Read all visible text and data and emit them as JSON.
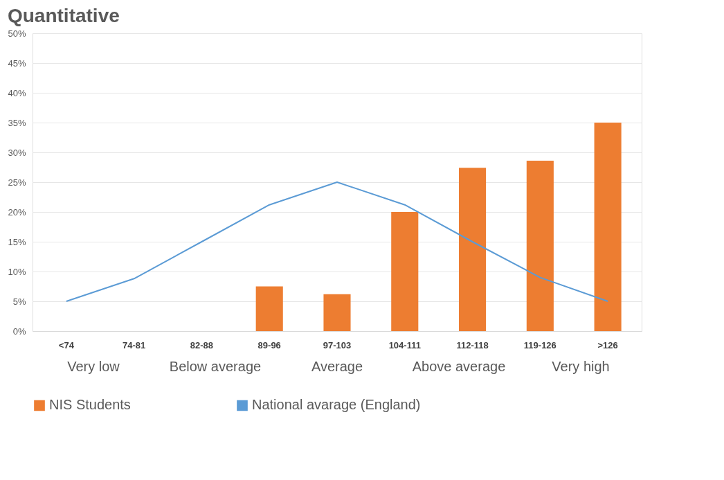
{
  "chart_data": {
    "type": "bar",
    "title": "Quantitative",
    "categories": [
      "<74",
      "74-81",
      "82-88",
      "89-96",
      "97-103",
      "104-111",
      "112-118",
      "119-126",
      ">126"
    ],
    "series": [
      {
        "name": "NIS Students",
        "color": "#ed7d31",
        "values": [
          null,
          null,
          null,
          7.5,
          6.2,
          20,
          27.4,
          28.6,
          35
        ]
      },
      {
        "name": "National avarage (England)",
        "type": "line",
        "color": "#5b9bd5",
        "values": [
          5,
          8.8,
          15,
          21.2,
          25,
          21.2,
          15,
          9,
          5
        ]
      }
    ],
    "ylim": [
      0,
      50
    ],
    "yticks": [
      {
        "value": 0,
        "label": "0%"
      },
      {
        "value": 5,
        "label": "5%"
      },
      {
        "value": 10,
        "label": "10%"
      },
      {
        "value": 15,
        "label": "15%"
      },
      {
        "value": 20,
        "label": "20%"
      },
      {
        "value": 25,
        "label": "25%"
      },
      {
        "value": 30,
        "label": "30%"
      },
      {
        "value": 35,
        "label": "35%"
      },
      {
        "value": 40,
        "label": "40%"
      },
      {
        "value": 45,
        "label": "45%"
      },
      {
        "value": 50,
        "label": "50%"
      }
    ],
    "grid": "y",
    "legend": "bottom",
    "marker": "none",
    "line_style": "solid",
    "annotations": [
      "Very low",
      "Below average",
      "Average",
      "Above average",
      "Very high"
    ]
  }
}
